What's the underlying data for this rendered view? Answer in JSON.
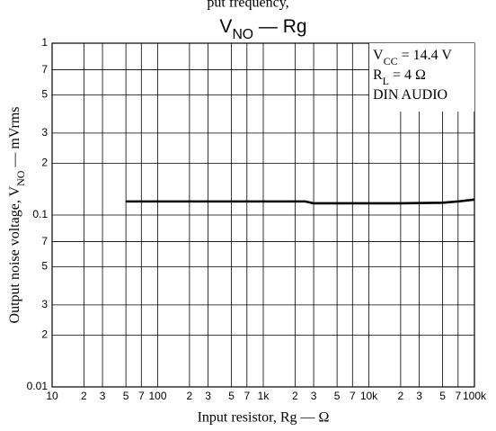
{
  "header_text": "put frequency,",
  "chart_data": {
    "type": "line",
    "title": [
      "V",
      "NO",
      " — Rg"
    ],
    "xlabel": "Input resistor, Rg — Ω",
    "ylabel": [
      "Output noise voltage, V",
      "NO",
      " — mVrms"
    ],
    "annotation": [
      [
        "V",
        "CC",
        " = 14.4 V"
      ],
      [
        "R",
        "L",
        " = 4 Ω"
      ],
      [
        "DIN AUDIO"
      ]
    ],
    "xlog": true,
    "ylog": true,
    "grid": true,
    "xlim": [
      10,
      100000
    ],
    "ylim": [
      0.01,
      1
    ],
    "xticks": [
      10,
      {
        "value": 20,
        "label": "2"
      },
      {
        "value": 30,
        "label": "3"
      },
      {
        "value": 50,
        "label": "5"
      },
      {
        "value": 70,
        "label": "7"
      },
      100,
      {
        "value": 200,
        "label": "2"
      },
      {
        "value": 300,
        "label": "3"
      },
      {
        "value": 500,
        "label": "5"
      },
      {
        "value": 700,
        "label": "7"
      },
      {
        "value": 1000,
        "label": "1k"
      },
      {
        "value": 2000,
        "label": "2"
      },
      {
        "value": 3000,
        "label": "3"
      },
      {
        "value": 5000,
        "label": "5"
      },
      {
        "value": 7000,
        "label": "7"
      },
      {
        "value": 10000,
        "label": "10k"
      },
      {
        "value": 20000,
        "label": "2"
      },
      {
        "value": 30000,
        "label": "3"
      },
      {
        "value": 50000,
        "label": "5"
      },
      {
        "value": 70000,
        "label": "7"
      },
      {
        "value": 100000,
        "label": "100k"
      }
    ],
    "yticks": [
      0.01,
      {
        "value": 0.02,
        "label": "2"
      },
      {
        "value": 0.03,
        "label": "3"
      },
      {
        "value": 0.05,
        "label": "5"
      },
      {
        "value": 0.07,
        "label": "7"
      },
      0.1,
      {
        "value": 0.2,
        "label": "2"
      },
      {
        "value": 0.3,
        "label": "3"
      },
      {
        "value": 0.5,
        "label": "5"
      },
      {
        "value": 0.7,
        "label": "7"
      },
      1
    ],
    "series": [
      {
        "color": "#000000",
        "x": [
          50,
          100,
          200,
          500,
          1000,
          2000,
          2500,
          3000,
          5000,
          10000,
          20000,
          50000,
          70000,
          100000
        ],
        "values": [
          0.12,
          0.12,
          0.12,
          0.12,
          0.12,
          0.12,
          0.12,
          0.117,
          0.117,
          0.117,
          0.117,
          0.118,
          0.12,
          0.123
        ]
      }
    ]
  }
}
